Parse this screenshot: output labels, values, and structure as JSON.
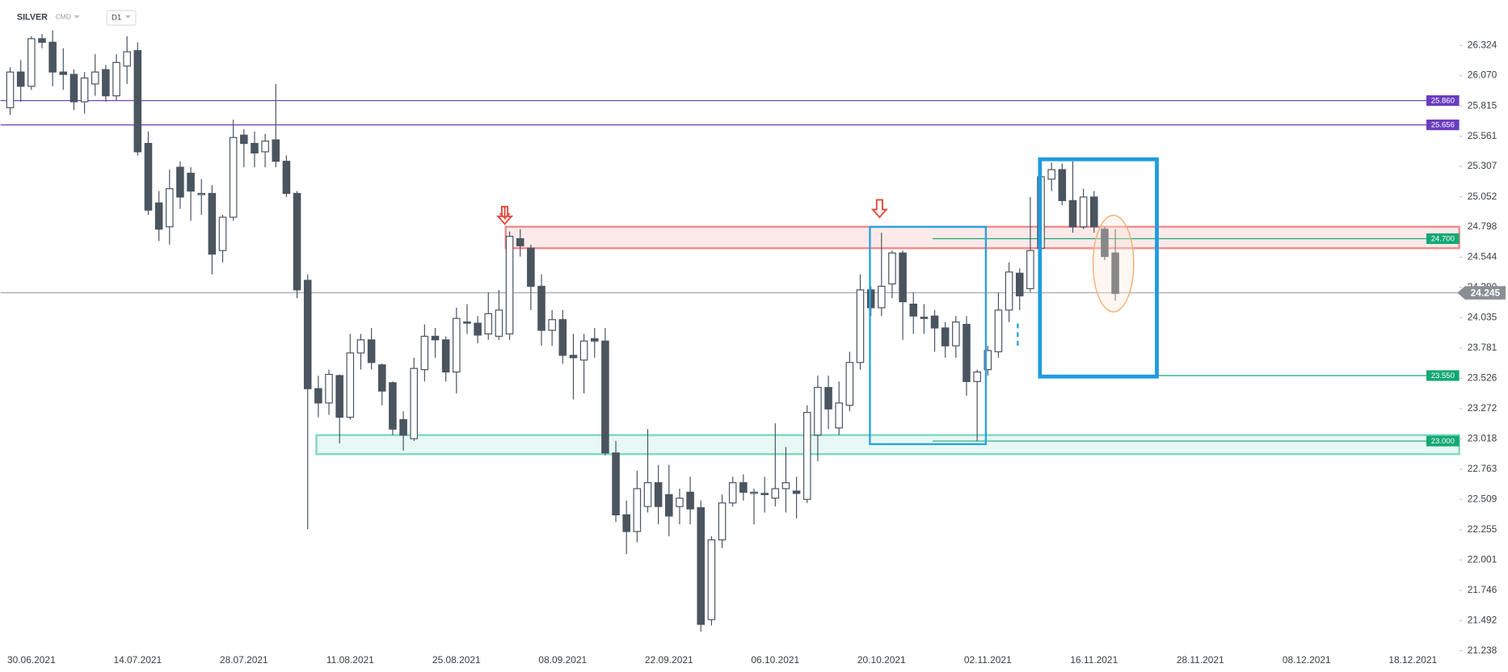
{
  "header": {
    "symbol": "SILVER",
    "market": "CMD",
    "interval": "D1"
  },
  "chart_data": {
    "type": "candlestick",
    "categories": [
      null,
      null,
      "30.06.2021",
      null,
      null,
      null,
      null,
      null,
      null,
      null,
      null,
      null,
      "14.07.2021",
      null,
      null,
      null,
      null,
      null,
      null,
      null,
      null,
      null,
      "28.07.2021",
      null,
      null,
      null,
      null,
      null,
      null,
      null,
      null,
      null,
      "11.08.2021",
      null,
      null,
      null,
      null,
      null,
      null,
      null,
      null,
      null,
      "25.08.2021",
      null,
      null,
      null,
      null,
      null,
      null,
      null,
      null,
      null,
      "08.09.2021",
      null,
      null,
      null,
      null,
      null,
      null,
      null,
      null,
      null,
      "22.09.2021",
      null,
      null,
      null,
      null,
      null,
      null,
      null,
      null,
      null,
      "06.10.2021",
      null,
      null,
      null,
      null,
      null,
      null,
      null,
      null,
      null,
      "20.10.2021",
      null,
      null,
      null,
      null,
      null,
      null,
      null,
      null,
      null,
      "02.11.2021",
      null,
      null,
      null,
      null,
      null,
      null,
      null,
      null,
      null,
      "16.11.2021",
      null,
      null,
      null,
      null,
      null,
      null,
      null,
      null,
      null,
      "28.11.2021",
      null,
      null,
      null,
      null,
      null,
      null,
      null,
      null,
      null,
      "08.12.2021",
      null,
      null,
      null,
      null,
      null,
      null,
      null,
      null,
      null,
      "18.12.2021",
      null,
      null,
      null,
      null
    ],
    "open": [
      25.8,
      26.1,
      25.98,
      26.38,
      26.35,
      26.1,
      26.08,
      25.85,
      26.0,
      26.12,
      25.9,
      26.15,
      26.28,
      25.5,
      25.0,
      24.8,
      25.3,
      25.25,
      25.07,
      25.08,
      24.6,
      24.88,
      25.57,
      25.5,
      25.43,
      25.53,
      25.35,
      25.08,
      24.35,
      23.44,
      23.32,
      23.55,
      23.2,
      23.74,
      23.85,
      23.64,
      23.49,
      23.18,
      23.02,
      23.6,
      23.88,
      23.85,
      23.58,
      24.0,
      23.99,
      23.9,
      23.88,
      23.9,
      24.7,
      24.62,
      24.3,
      23.93,
      24.02,
      23.72,
      23.68,
      23.86,
      23.84,
      22.9,
      22.38,
      22.24,
      22.45,
      22.65,
      22.55,
      22.45,
      22.57,
      22.44,
      21.5,
      22.17,
      22.48,
      22.65,
      22.56,
      22.56,
      22.52,
      22.6,
      22.58,
      22.51,
      23.05,
      23.45,
      23.11,
      23.3,
      23.66,
      24.27,
      24.12,
      24.32,
      24.58,
      24.15,
      24.04,
      24.05,
      23.95,
      23.8,
      23.98,
      23.5,
      23.6,
      23.75,
      24.1,
      24.41,
      24.28,
      24.62,
      25.2,
      25.28,
      25.02,
      24.8,
      25.05,
      24.78,
      24.58,
      null,
      null,
      null,
      null,
      null,
      null,
      null,
      null,
      null,
      null,
      null,
      null,
      null,
      null,
      null,
      null,
      null,
      null,
      null,
      null,
      null,
      null,
      null,
      null,
      null,
      null,
      null,
      null,
      null,
      null,
      null,
      null
    ],
    "high": [
      26.14,
      26.2,
      26.4,
      26.42,
      26.45,
      26.3,
      26.12,
      26.1,
      26.25,
      26.16,
      26.25,
      26.4,
      26.35,
      25.6,
      25.1,
      25.28,
      25.35,
      25.3,
      25.2,
      25.15,
      24.9,
      25.7,
      25.62,
      25.6,
      25.58,
      26.0,
      25.4,
      25.1,
      24.4,
      23.55,
      23.6,
      23.56,
      23.9,
      23.9,
      23.95,
      23.65,
      23.5,
      23.25,
      23.7,
      23.98,
      23.95,
      23.88,
      24.12,
      24.15,
      24.05,
      24.25,
      24.27,
      24.76,
      24.78,
      24.65,
      24.4,
      24.1,
      24.1,
      23.9,
      23.9,
      23.95,
      23.95,
      23.0,
      22.5,
      22.75,
      23.1,
      22.8,
      22.8,
      22.6,
      22.7,
      22.5,
      22.2,
      22.55,
      22.7,
      22.72,
      22.6,
      22.7,
      23.15,
      22.95,
      22.7,
      23.3,
      23.55,
      23.55,
      23.5,
      23.75,
      24.4,
      24.3,
      24.75,
      24.6,
      24.6,
      24.25,
      24.15,
      24.1,
      24.0,
      24.05,
      24.05,
      23.6,
      23.8,
      24.25,
      24.5,
      24.45,
      25.05,
      25.3,
      25.34,
      25.33,
      25.35,
      25.12,
      25.1,
      24.8,
      24.78,
      null,
      null,
      null,
      null,
      null,
      null,
      null,
      null,
      null,
      null,
      null,
      null,
      null,
      null,
      null,
      null,
      null,
      null,
      null,
      null,
      null,
      null,
      null,
      null,
      null,
      null,
      null,
      null,
      null,
      null,
      null,
      null
    ],
    "low": [
      25.74,
      25.85,
      25.95,
      26.3,
      25.98,
      25.95,
      25.78,
      25.75,
      25.9,
      25.85,
      25.86,
      26.0,
      25.4,
      24.9,
      24.68,
      24.65,
      24.95,
      24.85,
      24.9,
      24.4,
      24.5,
      24.85,
      25.3,
      25.3,
      25.3,
      25.3,
      25.05,
      24.2,
      22.26,
      23.2,
      23.22,
      22.98,
      23.18,
      23.6,
      23.6,
      23.3,
      23.05,
      22.92,
      23.0,
      23.5,
      23.7,
      23.5,
      23.4,
      23.9,
      23.82,
      23.85,
      23.85,
      23.85,
      24.55,
      24.1,
      23.8,
      23.8,
      23.65,
      23.35,
      23.4,
      23.7,
      22.88,
      22.32,
      22.05,
      22.15,
      22.4,
      22.3,
      22.2,
      22.3,
      22.3,
      21.4,
      21.45,
      22.1,
      22.45,
      22.5,
      22.3,
      22.4,
      22.45,
      22.4,
      22.35,
      22.48,
      22.83,
      23.1,
      23.05,
      23.25,
      23.6,
      24.05,
      24.05,
      24.2,
      23.85,
      23.9,
      23.9,
      23.75,
      23.7,
      23.7,
      23.38,
      23.0,
      23.55,
      23.7,
      24.0,
      24.1,
      24.25,
      24.6,
      25.1,
      24.98,
      24.75,
      24.78,
      24.75,
      24.52,
      24.18,
      null,
      null,
      null,
      null,
      null,
      null,
      null,
      null,
      null,
      null,
      null,
      null,
      null,
      null,
      null,
      null,
      null,
      null,
      null,
      null,
      null,
      null,
      null,
      null,
      null,
      null,
      null,
      null,
      null,
      null,
      null,
      null
    ],
    "close": [
      26.1,
      25.98,
      26.38,
      26.35,
      26.1,
      26.08,
      25.85,
      26.05,
      26.1,
      25.9,
      26.18,
      26.27,
      25.43,
      24.94,
      24.78,
      25.12,
      25.05,
      25.1,
      25.08,
      24.57,
      24.88,
      25.55,
      25.5,
      25.42,
      25.52,
      25.35,
      25.08,
      24.27,
      23.44,
      23.32,
      23.56,
      23.2,
      23.74,
      23.85,
      23.66,
      23.42,
      23.1,
      23.05,
      23.61,
      23.88,
      23.85,
      23.58,
      24.03,
      23.99,
      23.89,
      24.07,
      24.1,
      24.72,
      24.64,
      24.3,
      23.93,
      24.02,
      23.72,
      23.7,
      23.84,
      23.84,
      22.9,
      22.38,
      22.24,
      22.6,
      22.65,
      22.45,
      22.37,
      22.52,
      22.43,
      21.46,
      22.17,
      22.48,
      22.65,
      22.57,
      22.57,
      22.55,
      22.6,
      22.65,
      22.56,
      23.24,
      23.45,
      23.27,
      23.32,
      23.66,
      24.27,
      24.12,
      24.3,
      24.58,
      24.17,
      24.05,
      24.03,
      23.95,
      23.8,
      24.0,
      23.5,
      23.58,
      23.76,
      24.1,
      24.42,
      24.22,
      24.6,
      25.22,
      25.28,
      25.02,
      24.8,
      25.05,
      24.8,
      24.55,
      24.24,
      null,
      null,
      null,
      null,
      null,
      null,
      null,
      null,
      null,
      null,
      null,
      null,
      null,
      null,
      null,
      null,
      null,
      null,
      null,
      null,
      null,
      null,
      null,
      null,
      null,
      null,
      null,
      null,
      null,
      null,
      null,
      null
    ],
    "up_color": "#ffffff",
    "down_color": "#4a5560",
    "ylim": [
      21.222,
      26.705
    ],
    "yticks": [
      26.324,
      {
        "value": 26.07,
        "label": "26.070"
      },
      25.815,
      25.561,
      25.307,
      25.052,
      24.798,
      24.544,
      {
        "value": 24.29,
        "label": "24.290"
      },
      24.035,
      23.781,
      23.526,
      23.272,
      23.018,
      22.763,
      22.509,
      22.255,
      22.001,
      21.746,
      21.492,
      21.238
    ],
    "levels": [
      {
        "value": 25.86,
        "label": "25.860",
        "color": "#6a3dbf"
      },
      {
        "value": 25.656,
        "label": "25.656",
        "color": "#6a3dbf"
      },
      {
        "value": 24.7,
        "label": "24.700",
        "color": "#13a873"
      },
      {
        "value": 23.55,
        "label": "23.550",
        "color": "#13a873"
      },
      {
        "value": 23.0,
        "label": "23.000",
        "color": "#13a873"
      }
    ],
    "last_price": {
      "value": 24.245,
      "color": "#8a8f96"
    },
    "zones": [
      {
        "low": 24.62,
        "high": 24.8,
        "color": "#f08a8a"
      },
      {
        "low": 22.89,
        "high": 23.05,
        "color": "#7fd8c0"
      }
    ]
  }
}
